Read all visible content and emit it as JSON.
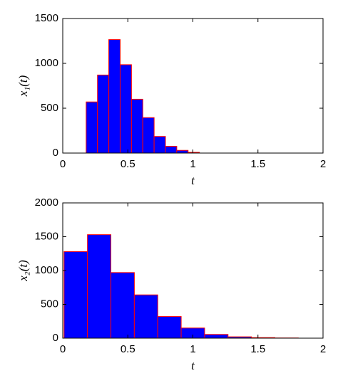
{
  "chart_data": [
    {
      "type": "histogram",
      "y_label": "x₁(t)",
      "x_label": "t",
      "bins": [
        0.18,
        0.267,
        0.354,
        0.441,
        0.528,
        0.615,
        0.702,
        0.789,
        0.876,
        0.963,
        1.05
      ],
      "values": [
        570,
        870,
        1265,
        985,
        600,
        395,
        185,
        75,
        30,
        8
      ],
      "color": "#0000ff",
      "edge_color": "#ff0000",
      "xlim": [
        0,
        2
      ],
      "xticks": [
        0,
        0.5,
        1,
        1.5,
        2
      ],
      "ylim": [
        0,
        1500
      ],
      "yticks": [
        0,
        500,
        1000,
        1500
      ]
    },
    {
      "type": "histogram",
      "y_label": "x₂(t)",
      "x_label": "t",
      "bins": [
        0.01,
        0.19,
        0.37,
        0.55,
        0.73,
        0.91,
        1.09,
        1.27,
        1.45,
        1.63,
        1.81
      ],
      "values": [
        1280,
        1530,
        970,
        640,
        320,
        150,
        55,
        20,
        8,
        3
      ],
      "color": "#0000ff",
      "edge_color": "#ff0000",
      "xlim": [
        0,
        2
      ],
      "xticks": [
        0,
        0.5,
        1,
        1.5,
        2
      ],
      "ylim": [
        0,
        2000
      ],
      "yticks": [
        0,
        500,
        1000,
        1500,
        2000
      ]
    }
  ]
}
